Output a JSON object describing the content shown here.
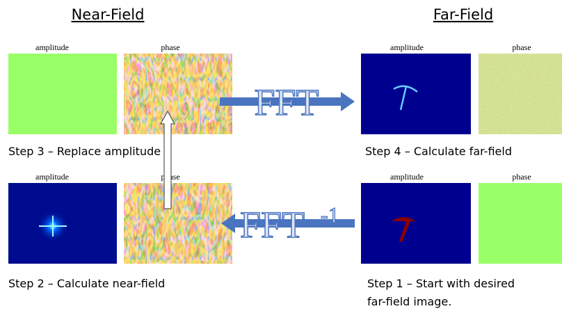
{
  "headers": {
    "near_field": "Near-Field",
    "far_field": "Far-Field"
  },
  "panels": [
    {
      "label": "amplitude"
    },
    {
      "label": "phase"
    },
    {
      "label": "amplitude"
    },
    {
      "label": "phase"
    },
    {
      "label": "amplitude"
    },
    {
      "label": "phase"
    },
    {
      "label": "amplitude"
    },
    {
      "label": "phase"
    }
  ],
  "steps": {
    "step3": "Step 3 – Replace amplitude",
    "step4": "Step 4 – Calculate far-field",
    "step2": "Step 2 – Calculate near-field",
    "step1": [
      "Step 1 – Start with desired",
      "far-field image."
    ]
  },
  "arrows": {
    "forward": "FFT",
    "inverse": {
      "text": "FFT",
      "superscript": "-1"
    }
  }
}
